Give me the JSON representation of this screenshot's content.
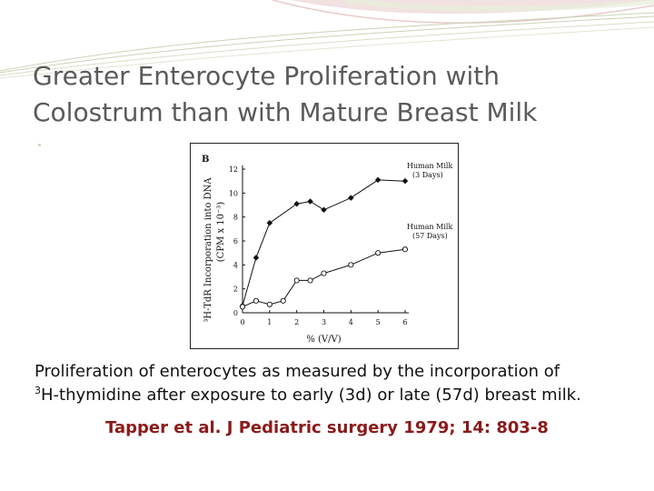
{
  "slide": {
    "title_line1": "Greater Enterocyte Proliferation with",
    "title_line2": "Colostrum than with Mature Breast Milk",
    "caption_line1": "Proliferation of enterocytes as measured by the incorporation of",
    "caption_sup": "3",
    "caption_line2": "H-thymidine after exposure to early (3d) or late (57d) breast milk.",
    "reference": "Tapper et al. J Pediatric surgery 1979; 14: 803-8",
    "colors": {
      "title": "#5a5a5a",
      "reference": "#8b1a1a",
      "decoration": "#c9d4b4"
    }
  },
  "chart_data": {
    "type": "line",
    "panel_label": "B",
    "xlabel": "% (V/V)",
    "ylabel_line1": "³H-TdR Incorporation into DNA",
    "ylabel_line2": "(CPM x 10⁻³)",
    "xlim": [
      0,
      6
    ],
    "ylim": [
      0,
      12
    ],
    "x_ticks": [
      "0",
      "1",
      "2",
      "3",
      "4",
      "5",
      "6"
    ],
    "y_ticks": [
      "0",
      "2",
      "4",
      "6",
      "8",
      "10",
      "12"
    ],
    "grid": false,
    "series": [
      {
        "name": "Human Milk (3 Days)",
        "label_line1": "Human Milk",
        "label_line2": "(3 Days)",
        "marker": "filled-diamond",
        "x": [
          0,
          0.5,
          1,
          2,
          2.5,
          3,
          4,
          5,
          6
        ],
        "y": [
          0.6,
          4.6,
          7.5,
          9.1,
          9.3,
          8.6,
          9.6,
          11.1,
          11
        ]
      },
      {
        "name": "Human Milk (57 Days)",
        "label_line1": "Human Milk",
        "label_line2": "(57 Days)",
        "marker": "open-circle",
        "x": [
          0,
          0.5,
          1,
          1.5,
          2,
          2.5,
          3,
          4,
          5,
          6
        ],
        "y": [
          0.5,
          1,
          0.7,
          1,
          2.7,
          2.7,
          3.3,
          4,
          5,
          5.3
        ]
      }
    ]
  }
}
